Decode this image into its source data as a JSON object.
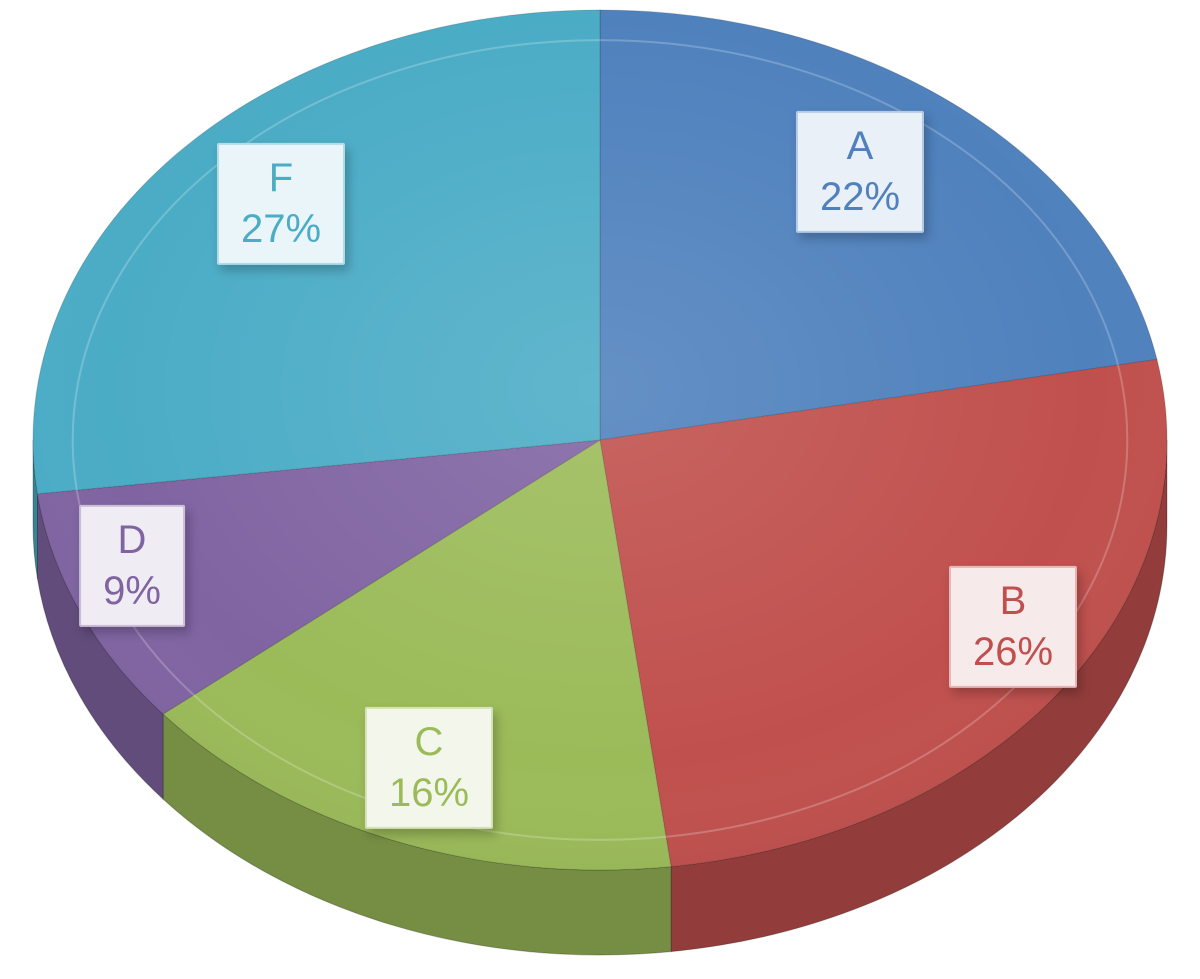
{
  "chart_data": {
    "type": "pie",
    "title": "",
    "effect": "3d-perspective",
    "start_angle_deg": 0,
    "direction": "clockwise",
    "legend_position": "none",
    "data_label_style": "callout box with category letter and percentage inside each slice",
    "background_color": "#ffffff",
    "categories": [
      "A",
      "B",
      "C",
      "D",
      "F"
    ],
    "values": [
      22,
      26,
      16,
      9,
      27
    ],
    "slices": [
      {
        "label": "A",
        "value": 22,
        "pct": "22%",
        "color": "#4f81bd"
      },
      {
        "label": "B",
        "value": 26,
        "pct": "26%",
        "color": "#c0504d"
      },
      {
        "label": "C",
        "value": 16,
        "pct": "16%",
        "color": "#9bbb59"
      },
      {
        "label": "D",
        "value": 9,
        "pct": "9%",
        "color": "#8064a2"
      },
      {
        "label": "F",
        "value": 27,
        "pct": "27%",
        "color": "#4bacc6"
      }
    ]
  }
}
